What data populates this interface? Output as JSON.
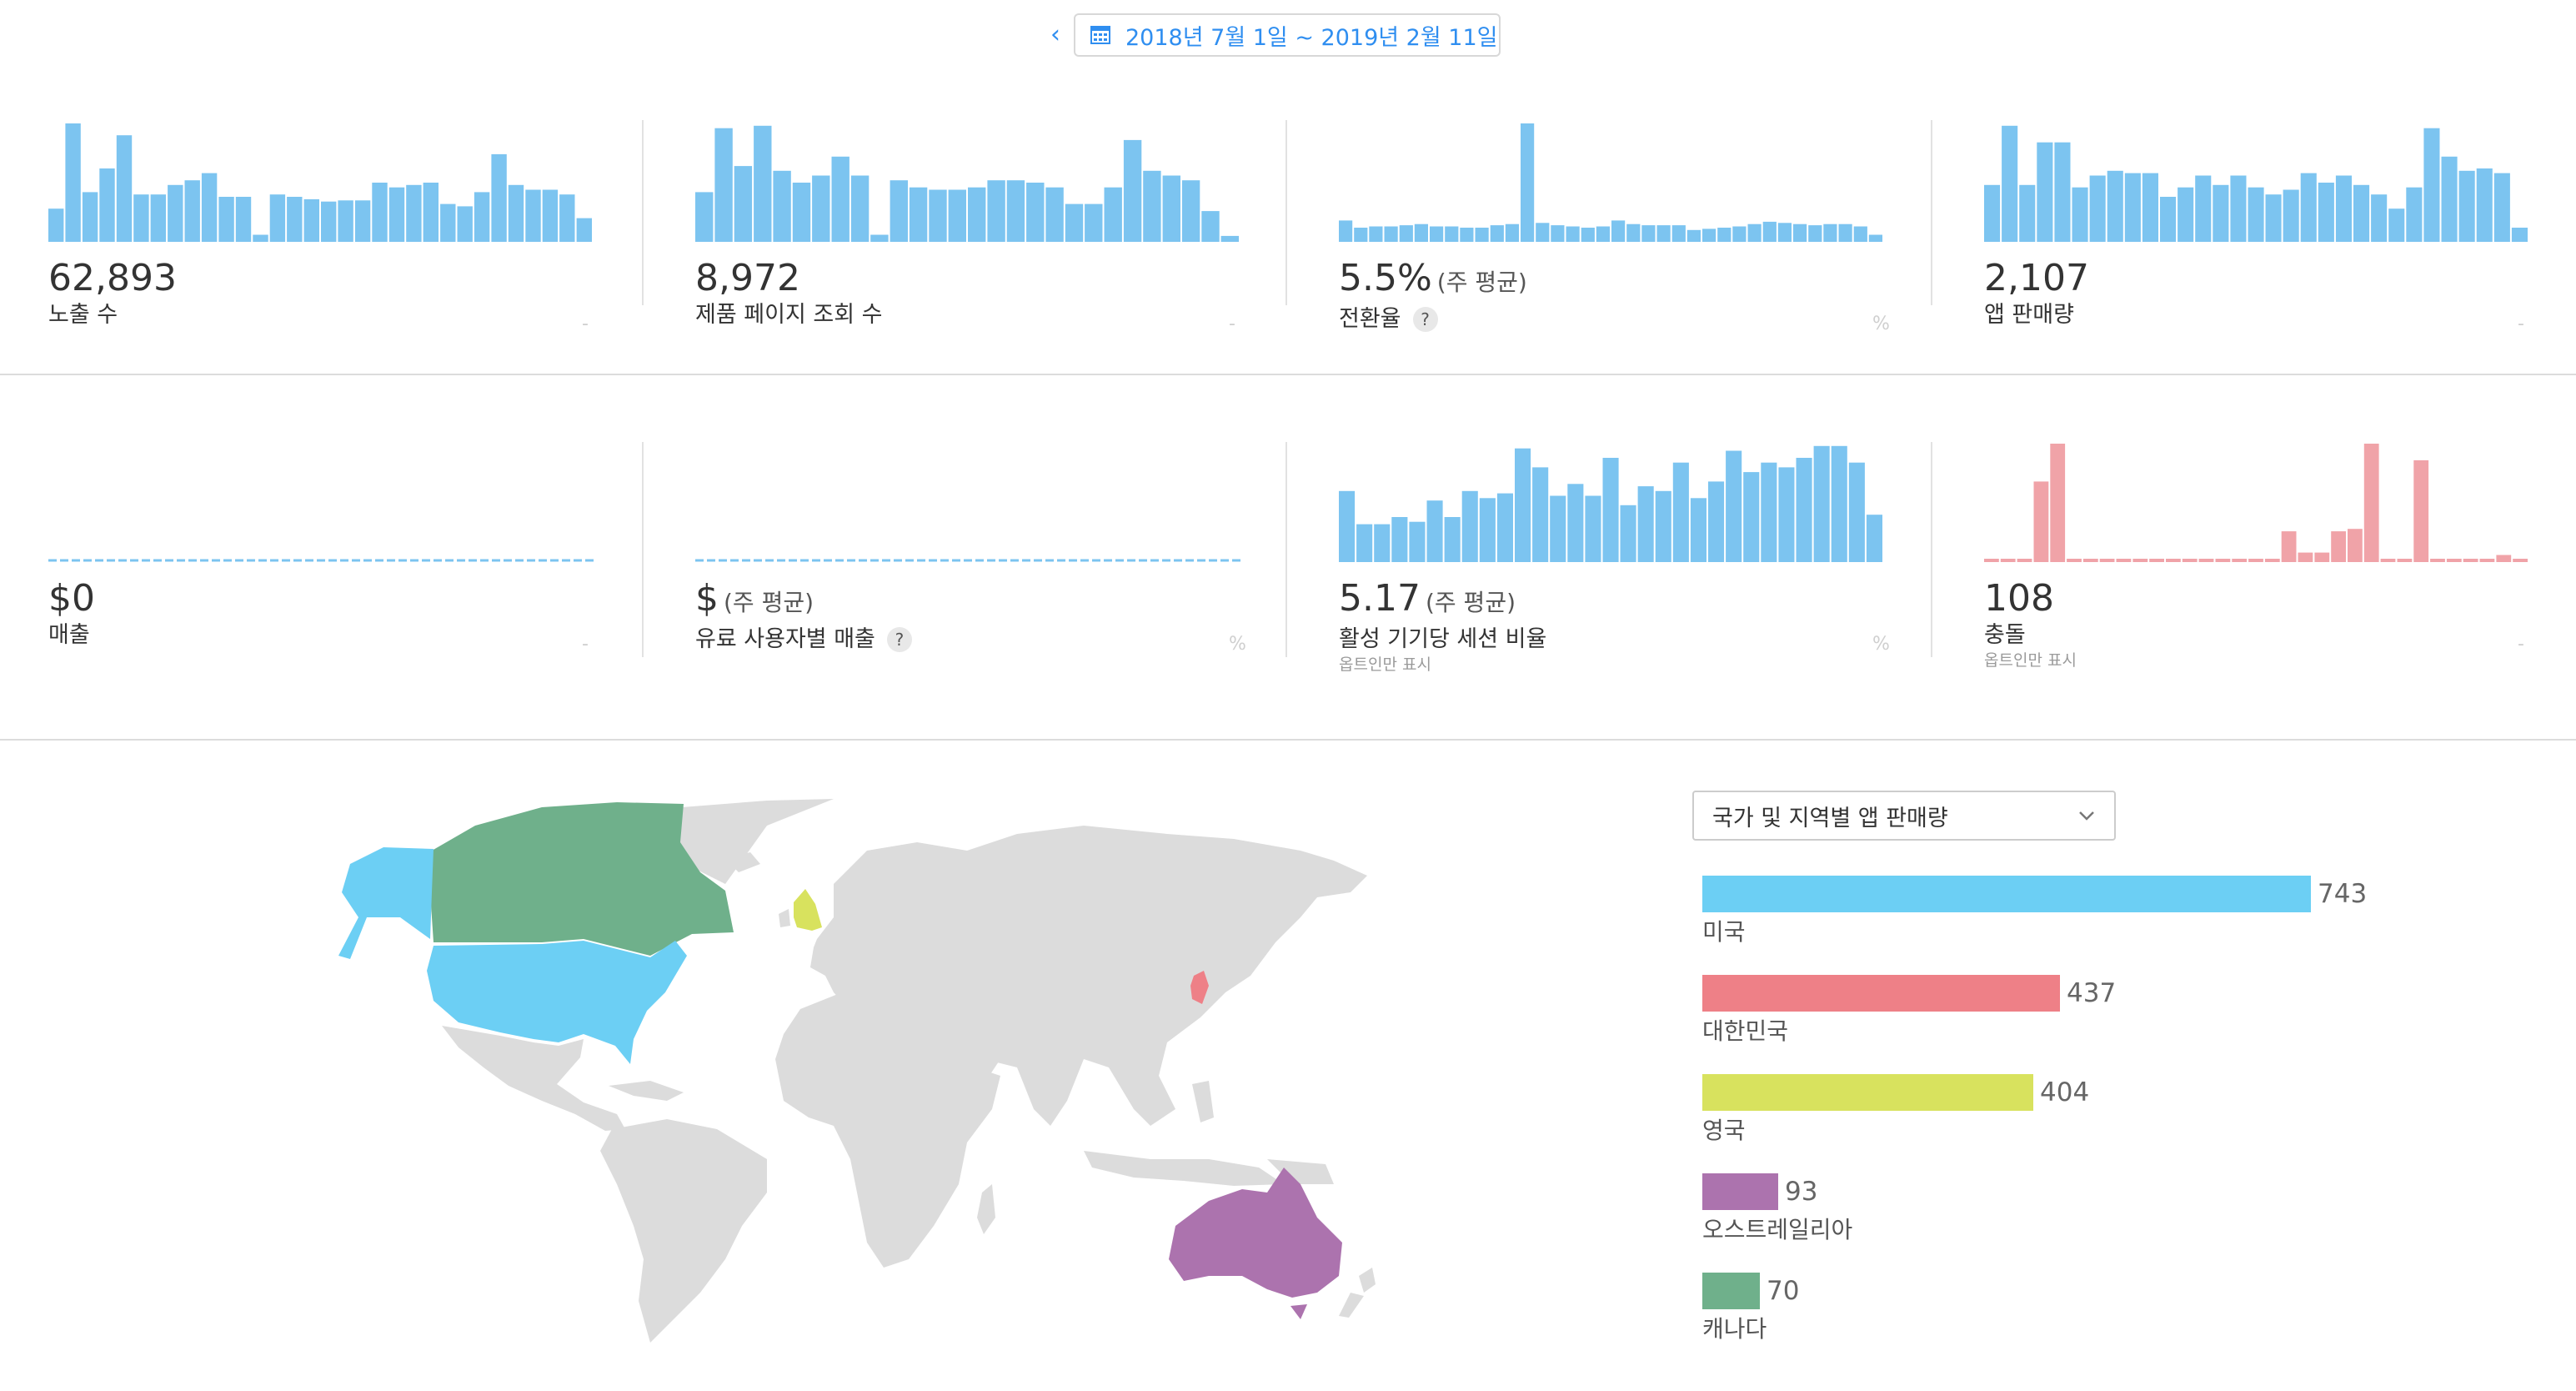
{
  "header": {
    "back_icon": "chevron-left-icon",
    "calendar_icon": "calendar-icon",
    "date_range": "2018년 7월 1일 ~ 2019년 2월 11일",
    "accent": "#2f8ef0"
  },
  "metrics": [
    {
      "id": "impressions",
      "value": "62,893",
      "value_sub": "",
      "label": "노출 수",
      "help": "",
      "unit": "-",
      "note": "",
      "color": "#7cc4f0",
      "mode": "bars",
      "series": [
        0.28,
        1.0,
        0.42,
        0.62,
        0.9,
        0.4,
        0.4,
        0.48,
        0.52,
        0.58,
        0.38,
        0.38,
        0.06,
        0.4,
        0.38,
        0.36,
        0.34,
        0.35,
        0.35,
        0.5,
        0.46,
        0.48,
        0.5,
        0.32,
        0.3,
        0.42,
        0.74,
        0.48,
        0.44,
        0.44,
        0.4,
        0.2
      ]
    },
    {
      "id": "product-page-views",
      "value": "8,972",
      "value_sub": "",
      "label": "제품 페이지 조회 수",
      "help": "",
      "unit": "-",
      "note": "",
      "color": "#7cc4f0",
      "mode": "bars",
      "series": [
        0.42,
        0.96,
        0.64,
        0.98,
        0.6,
        0.5,
        0.56,
        0.72,
        0.56,
        0.06,
        0.52,
        0.46,
        0.44,
        0.44,
        0.46,
        0.52,
        0.52,
        0.5,
        0.46,
        0.32,
        0.32,
        0.46,
        0.86,
        0.6,
        0.56,
        0.52,
        0.26,
        0.05
      ]
    },
    {
      "id": "conversion-rate",
      "value": "5.5%",
      "value_sub": "(주 평균)",
      "label": "전환율",
      "help": "?",
      "unit": "%",
      "note": "",
      "color": "#7cc4f0",
      "mode": "bars",
      "series": [
        0.18,
        0.12,
        0.13,
        0.13,
        0.14,
        0.15,
        0.13,
        0.13,
        0.12,
        0.12,
        0.14,
        0.15,
        1.0,
        0.16,
        0.14,
        0.13,
        0.12,
        0.13,
        0.18,
        0.15,
        0.14,
        0.14,
        0.14,
        0.1,
        0.11,
        0.12,
        0.13,
        0.15,
        0.17,
        0.16,
        0.15,
        0.14,
        0.15,
        0.15,
        0.13,
        0.06
      ]
    },
    {
      "id": "app-units",
      "value": "2,107",
      "value_sub": "",
      "label": "앱 판매량",
      "help": "",
      "unit": "-",
      "note": "",
      "color": "#7cc4f0",
      "mode": "bars",
      "series": [
        0.48,
        0.98,
        0.48,
        0.84,
        0.84,
        0.46,
        0.56,
        0.6,
        0.58,
        0.58,
        0.38,
        0.46,
        0.56,
        0.48,
        0.56,
        0.46,
        0.4,
        0.44,
        0.58,
        0.5,
        0.56,
        0.48,
        0.4,
        0.28,
        0.46,
        0.96,
        0.72,
        0.6,
        0.62,
        0.58,
        0.12
      ]
    },
    {
      "id": "sales",
      "value": "$0",
      "value_sub": "",
      "label": "매출",
      "help": "",
      "unit": "-",
      "note": "",
      "color": "#7cc4f0",
      "mode": "flat",
      "series": []
    },
    {
      "id": "sales-per-paying-user",
      "value": "$",
      "value_sub": "(주 평균)",
      "label": "유료 사용자별 매출",
      "help": "?",
      "unit": "%",
      "note": "",
      "color": "#7cc4f0",
      "mode": "flat",
      "series": []
    },
    {
      "id": "sessions-per-active-device",
      "value": "5.17",
      "value_sub": "(주 평균)",
      "label": "활성 기기당 세션 비율",
      "help": "",
      "unit": "%",
      "note": "옵트인만 표시",
      "color": "#7cc4f0",
      "mode": "bars",
      "series": [
        0.6,
        0.32,
        0.32,
        0.38,
        0.34,
        0.52,
        0.38,
        0.6,
        0.54,
        0.58,
        0.96,
        0.8,
        0.56,
        0.66,
        0.56,
        0.88,
        0.48,
        0.64,
        0.6,
        0.84,
        0.54,
        0.68,
        0.94,
        0.76,
        0.84,
        0.8,
        0.88,
        0.98,
        0.98,
        0.84,
        0.4
      ]
    },
    {
      "id": "crashes",
      "value": "108",
      "value_sub": "",
      "label": "충돌",
      "help": "",
      "unit": "-",
      "note": "옵트인만 표시",
      "color": "#f0a3a8",
      "mode": "bars",
      "series": [
        0.0,
        0.0,
        0.0,
        0.68,
        1.0,
        0.0,
        0.0,
        0.0,
        0.0,
        0.0,
        0.0,
        0.0,
        0.0,
        0.0,
        0.0,
        0.0,
        0.0,
        0.0,
        0.26,
        0.08,
        0.08,
        0.26,
        0.28,
        1.0,
        0.0,
        0.0,
        0.86,
        0.0,
        0.0,
        0.0,
        0.0,
        0.06,
        0.0
      ]
    }
  ],
  "territory": {
    "dropdown_label": "국가 및 지역별 앱 판매량",
    "dropdown_icon": "chevron-down-icon",
    "max": 743,
    "items": [
      {
        "name": "미국",
        "value": 743,
        "value_text": "743",
        "color": "#6ccff4"
      },
      {
        "name": "대한민국",
        "value": 437,
        "value_text": "437",
        "color": "#ee8087"
      },
      {
        "name": "영국",
        "value": 404,
        "value_text": "404",
        "color": "#d8e25e"
      },
      {
        "name": "오스트레일리아",
        "value": 93,
        "value_text": "93",
        "color": "#ac73ae"
      },
      {
        "name": "캐나다",
        "value": 70,
        "value_text": "70",
        "color": "#6fb08b"
      }
    ]
  },
  "map": {
    "land_color": "#dcdcdc"
  }
}
